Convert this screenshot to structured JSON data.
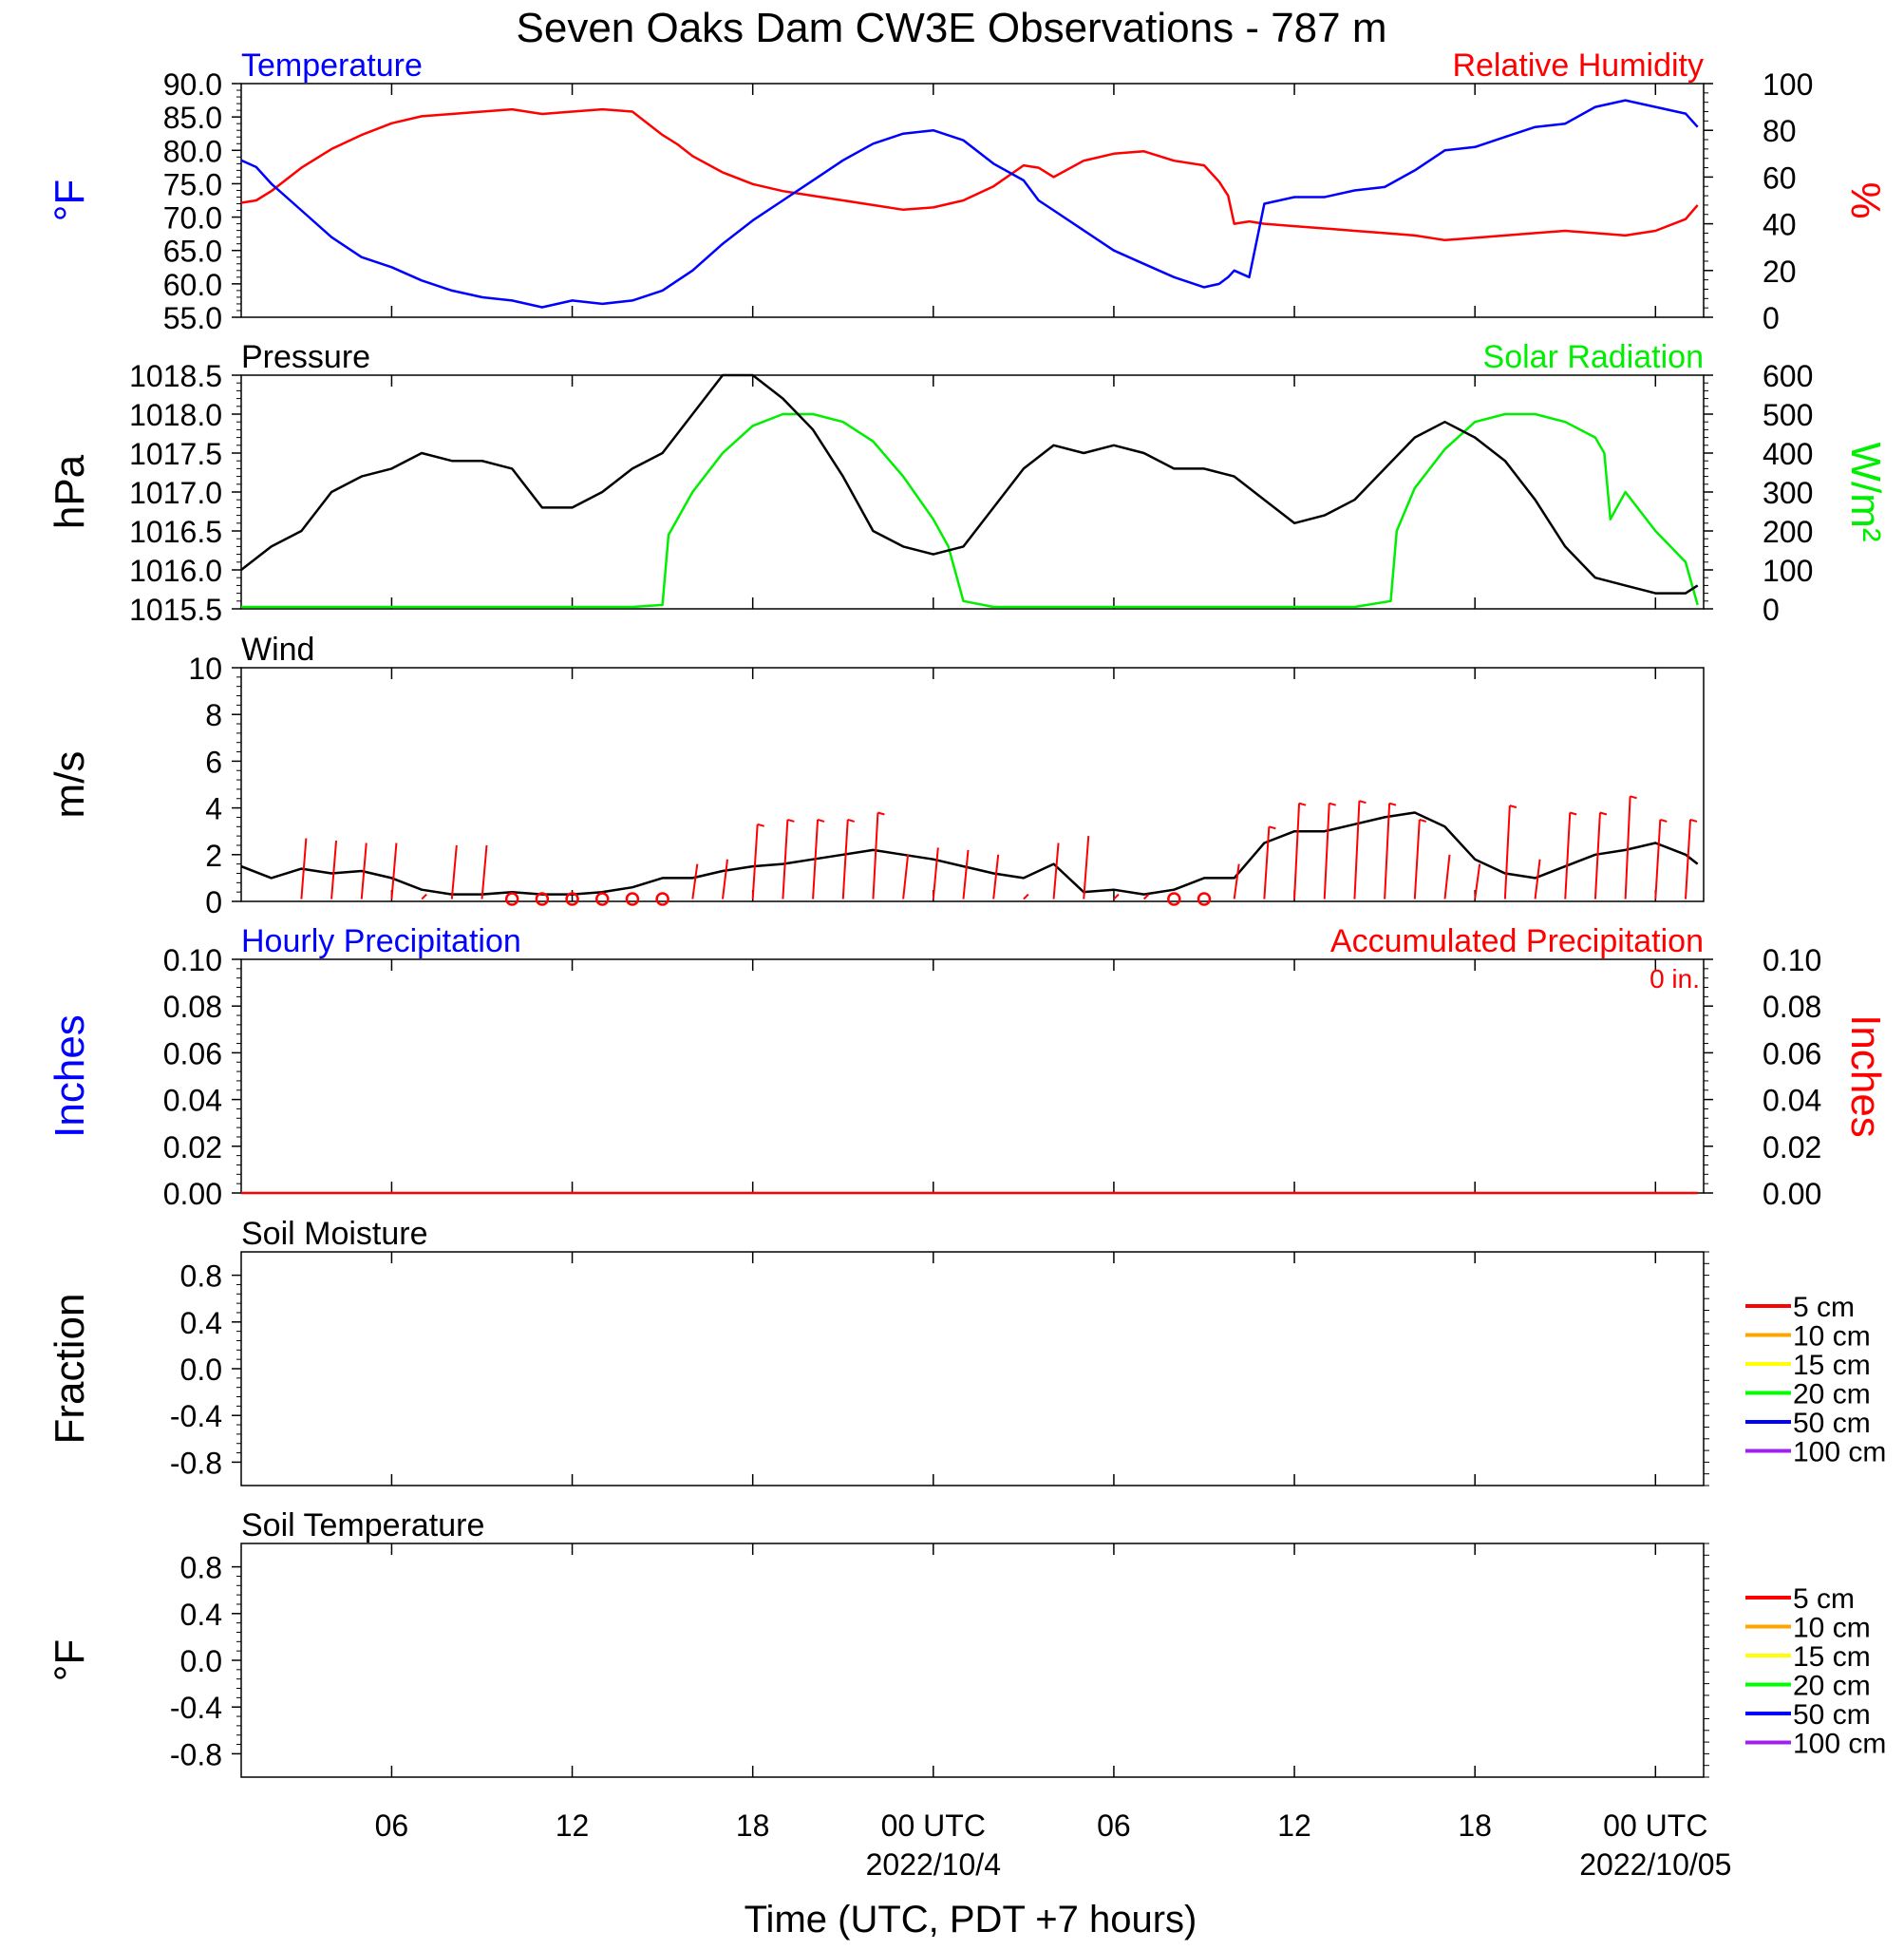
{
  "page_title": "Seven Oaks Dam CW3E Observations - 787 m",
  "colors": {
    "temperature": "#0000ff",
    "humidity": "#ff0000",
    "pressure": "#000000",
    "solar": "#00ee00",
    "wind": "#000000",
    "wind_barb": "#ff0000",
    "hourly_precip": "#0000ff",
    "accum_precip": "#ff0000"
  },
  "x_axis": {
    "label": "Time (UTC, PDT +7 hours)",
    "range_hours": [
      0,
      48.6
    ],
    "ticks": [
      {
        "h": 5,
        "label": "06"
      },
      {
        "h": 11,
        "label": "12"
      },
      {
        "h": 17,
        "label": "18"
      },
      {
        "h": 23,
        "label": "00 UTC"
      },
      {
        "h": 29,
        "label": "06"
      },
      {
        "h": 35,
        "label": "12"
      },
      {
        "h": 41,
        "label": "18"
      },
      {
        "h": 47,
        "label": "00 UTC"
      }
    ],
    "date_labels": [
      {
        "h": 23,
        "label": "2022/10/4"
      },
      {
        "h": 47,
        "label": "2022/10/05"
      }
    ]
  },
  "panels": {
    "temp_rh": {
      "left_title": "Temperature",
      "right_title": "Relative Humidity",
      "left_unit": "°F",
      "right_unit": "%"
    },
    "pressure_solar": {
      "left_title": "Pressure",
      "right_title": "Solar Radiation",
      "left_unit": "hPa",
      "right_unit": "W/m²"
    },
    "wind": {
      "left_title": "Wind",
      "left_unit": "m/s"
    },
    "precip": {
      "left_title": "Hourly Precipitation",
      "right_title": "Accumulated Precipitation",
      "left_unit": "Inches",
      "right_unit": "Inches",
      "accum_label": "0 in."
    },
    "soil_moisture": {
      "left_title": "Soil Moisture",
      "left_unit": "Fraction"
    },
    "soil_temperature": {
      "left_title": "Soil Temperature",
      "left_unit": "°F"
    }
  },
  "soil_legend": [
    {
      "label": "5 cm",
      "color": "#ff0000"
    },
    {
      "label": "10 cm",
      "color": "#ffa500"
    },
    {
      "label": "15 cm",
      "color": "#ffff00"
    },
    {
      "label": "20 cm",
      "color": "#00ff00"
    },
    {
      "label": "50 cm",
      "color": "#0000ff"
    },
    {
      "label": "100 cm",
      "color": "#a020f0"
    }
  ],
  "chart_data": [
    {
      "type": "line",
      "title": "Temperature",
      "ylabel": "°F",
      "ylim": [
        55,
        90
      ],
      "yticks": [
        "55.0",
        "60.0",
        "65.0",
        "70.0",
        "75.0",
        "80.0",
        "85.0",
        "90.0"
      ],
      "series": [
        {
          "name": "Temperature",
          "color": "#0000ff",
          "x": [
            0,
            0.5,
            1,
            2,
            3,
            4,
            5,
            6,
            7,
            8,
            9,
            10,
            11,
            12,
            13,
            14,
            14.5,
            15,
            16,
            17,
            18,
            19,
            20,
            21,
            22,
            23,
            24,
            25,
            26,
            26.5,
            27,
            28,
            29,
            30,
            31,
            32,
            32.5,
            32.8,
            33,
            33.5,
            34,
            35,
            36,
            37,
            38,
            39,
            40,
            41,
            42,
            43,
            44,
            45,
            46,
            47,
            48,
            48.4
          ],
          "y": [
            78.5,
            77.5,
            75,
            71,
            67,
            64,
            62.5,
            60.5,
            59,
            58,
            57.5,
            56.5,
            57.5,
            57,
            57.5,
            59,
            60.5,
            62,
            66,
            69.5,
            72.5,
            75.5,
            78.5,
            81,
            82.5,
            83,
            81.5,
            78,
            75.5,
            72.5,
            71,
            68,
            65,
            63,
            61,
            59.5,
            60,
            61,
            62,
            61,
            72,
            73,
            73,
            74,
            74.5,
            77,
            80,
            80.5,
            82,
            83.5,
            84,
            86.5,
            87.5,
            86.5,
            85.5,
            83.5
          ]
        }
      ]
    },
    {
      "type": "line",
      "title": "Relative Humidity",
      "ylabel": "%",
      "ylim": [
        0,
        100
      ],
      "yticks": [
        "0",
        "20",
        "40",
        "60",
        "80",
        "100"
      ],
      "series": [
        {
          "name": "Relative Humidity",
          "color": "#ff0000",
          "x": [
            0,
            0.5,
            1,
            2,
            3,
            4,
            5,
            6,
            7,
            8,
            9,
            10,
            11,
            12,
            13,
            14,
            14.5,
            15,
            16,
            17,
            18,
            19,
            20,
            21,
            22,
            23,
            24,
            25,
            26,
            26.5,
            27,
            28,
            29,
            30,
            31,
            32,
            32.5,
            32.8,
            33,
            33.5,
            34,
            35,
            36,
            37,
            38,
            39,
            40,
            41,
            42,
            43,
            44,
            45,
            46,
            47,
            48,
            48.4
          ],
          "y": [
            49,
            50,
            54,
            64,
            72,
            78,
            83,
            86,
            87,
            88,
            89,
            87,
            88,
            89,
            88,
            78,
            74,
            69,
            62,
            57,
            54,
            52,
            50,
            48,
            46,
            47,
            50,
            56,
            65,
            64,
            60,
            67,
            70,
            71,
            67,
            65,
            58,
            52,
            40,
            41,
            40,
            39,
            38,
            37,
            36,
            35,
            33,
            34,
            35,
            36,
            37,
            36,
            35,
            37,
            42,
            48
          ]
        }
      ]
    },
    {
      "type": "line",
      "title": "Pressure",
      "ylabel": "hPa",
      "ylim": [
        1015.5,
        1018.5
      ],
      "yticks": [
        "1015.5",
        "1016.0",
        "1016.5",
        "1017.0",
        "1017.5",
        "1018.0",
        "1018.5"
      ],
      "series": [
        {
          "name": "Pressure",
          "color": "#000000",
          "x": [
            0,
            1,
            2,
            3,
            4,
            5,
            6,
            7,
            8,
            9,
            10,
            11,
            12,
            13,
            14,
            15,
            16,
            17,
            18,
            19,
            20,
            21,
            22,
            23,
            24,
            25,
            26,
            27,
            28,
            29,
            30,
            31,
            32,
            33,
            34,
            35,
            36,
            37,
            38,
            39,
            40,
            41,
            42,
            43,
            44,
            45,
            46,
            47,
            48,
            48.4
          ],
          "y": [
            1016.0,
            1016.3,
            1016.5,
            1017.0,
            1017.2,
            1017.3,
            1017.5,
            1017.4,
            1017.4,
            1017.3,
            1016.8,
            1016.8,
            1017.0,
            1017.3,
            1017.5,
            1018.0,
            1018.5,
            1018.5,
            1018.2,
            1017.8,
            1017.2,
            1016.5,
            1016.3,
            1016.2,
            1016.3,
            1016.8,
            1017.3,
            1017.6,
            1017.5,
            1017.6,
            1017.5,
            1017.3,
            1017.3,
            1017.2,
            1016.9,
            1016.6,
            1016.7,
            1016.9,
            1017.3,
            1017.7,
            1017.9,
            1017.7,
            1017.4,
            1016.9,
            1016.3,
            1015.9,
            1015.8,
            1015.7,
            1015.7,
            1015.8
          ]
        }
      ]
    },
    {
      "type": "line",
      "title": "Solar Radiation",
      "ylabel": "W/m²",
      "ylim": [
        0,
        600
      ],
      "yticks": [
        "0",
        "100",
        "200",
        "300",
        "400",
        "500",
        "600"
      ],
      "series": [
        {
          "name": "Solar Radiation",
          "color": "#00ee00",
          "x": [
            0,
            13,
            14,
            14.2,
            15,
            16,
            17,
            18,
            19,
            20,
            21,
            22,
            23,
            23.5,
            24,
            25,
            29,
            37,
            38.2,
            38.4,
            39,
            40,
            41,
            42,
            43,
            44,
            45,
            45.3,
            45.5,
            46,
            47,
            48,
            48.4
          ],
          "y": [
            5,
            5,
            10,
            190,
            300,
            400,
            470,
            500,
            500,
            480,
            430,
            340,
            230,
            160,
            20,
            5,
            5,
            5,
            20,
            200,
            310,
            410,
            480,
            500,
            500,
            480,
            440,
            400,
            230,
            300,
            200,
            120,
            10
          ]
        }
      ]
    },
    {
      "type": "line",
      "title": "Wind",
      "ylabel": "m/s",
      "ylim": [
        0,
        10
      ],
      "yticks": [
        "0",
        "2",
        "4",
        "6",
        "8",
        "10"
      ],
      "series": [
        {
          "name": "Wind",
          "color": "#000000",
          "x": [
            0,
            1,
            2,
            3,
            4,
            5,
            6,
            7,
            8,
            9,
            10,
            11,
            12,
            13,
            14,
            15,
            16,
            17,
            18,
            19,
            20,
            21,
            22,
            23,
            24,
            25,
            26,
            27,
            28,
            29,
            30,
            31,
            32,
            33,
            34,
            35,
            36,
            37,
            38,
            39,
            40,
            41,
            42,
            43,
            44,
            45,
            46,
            47,
            48,
            48.4
          ],
          "y": [
            1.5,
            1.0,
            1.4,
            1.2,
            1.3,
            1.0,
            0.5,
            0.3,
            0.3,
            0.4,
            0.3,
            0.3,
            0.4,
            0.6,
            1.0,
            1.0,
            1.3,
            1.5,
            1.6,
            1.8,
            2.0,
            2.2,
            2.0,
            1.8,
            1.5,
            1.2,
            1.0,
            1.6,
            0.4,
            0.5,
            0.3,
            0.5,
            1.0,
            1.0,
            2.5,
            3.0,
            3.0,
            3.3,
            3.6,
            3.8,
            3.2,
            1.8,
            1.2,
            1.0,
            1.5,
            2.0,
            2.2,
            2.5,
            2.0,
            1.6
          ]
        },
        {
          "name": "Wind barbs",
          "color": "#ff0000",
          "x": [
            2,
            3,
            4,
            5,
            6,
            7,
            8,
            9,
            10,
            11,
            12,
            13,
            14,
            15,
            16,
            17,
            18,
            19,
            20,
            21,
            22,
            23,
            24,
            25,
            26,
            27,
            28,
            29,
            30,
            31,
            32,
            33,
            34,
            35,
            36,
            37,
            38,
            39,
            40,
            41,
            42,
            43,
            44,
            45,
            46,
            47,
            48
          ],
          "y": [
            2.7,
            2.6,
            2.5,
            2.5,
            0.3,
            2.4,
            2.4,
            0,
            0,
            0,
            0,
            0,
            0,
            1.6,
            1.8,
            3.3,
            3.5,
            3.5,
            3.5,
            3.8,
            2.0,
            2.3,
            2.2,
            2.0,
            0.3,
            2.5,
            2.8,
            0.3,
            0.3,
            0,
            0,
            1.6,
            3.2,
            4.2,
            4.2,
            4.3,
            4.2,
            3.5,
            2.0,
            1.6,
            4.1,
            1.8,
            3.8,
            3.8,
            4.5,
            3.5,
            3.5
          ]
        }
      ]
    },
    {
      "type": "line",
      "title": "Hourly Precipitation",
      "ylabel": "Inches",
      "ylim": [
        0,
        0.1
      ],
      "yticks": [
        "0.00",
        "0.02",
        "0.04",
        "0.06",
        "0.08",
        "0.10"
      ],
      "series": [
        {
          "name": "Hourly Precipitation",
          "color": "#0000ff",
          "x": [
            0,
            48.4
          ],
          "y": [
            0,
            0
          ]
        },
        {
          "name": "Accumulated Precipitation",
          "color": "#ff0000",
          "x": [
            0,
            48.4
          ],
          "y": [
            0,
            0
          ]
        }
      ]
    },
    {
      "type": "line",
      "title": "Soil Moisture",
      "ylabel": "Fraction",
      "ylim": [
        -1,
        1
      ],
      "yticks": [
        "-0.8",
        "-0.4",
        "0.0",
        "0.4",
        "0.8"
      ],
      "series": []
    },
    {
      "type": "line",
      "title": "Soil Temperature",
      "ylabel": "°F",
      "ylim": [
        -1,
        1
      ],
      "yticks": [
        "-0.8",
        "-0.4",
        "0.0",
        "0.4",
        "0.8"
      ],
      "series": []
    }
  ]
}
